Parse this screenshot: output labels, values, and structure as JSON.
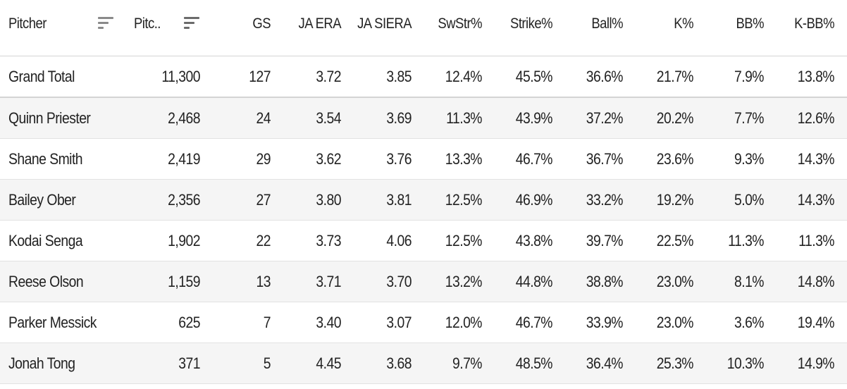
{
  "table": {
    "headers": {
      "pitcher": "Pitcher",
      "pitches": "Pitc..",
      "gs": "GS",
      "era": "JA ERA",
      "siera": "JA SIERA",
      "swstr": "SwStr%",
      "strike": "Strike%",
      "ball": "Ball%",
      "k": "K%",
      "bb": "BB%",
      "kbb": "K-BB%"
    },
    "icons": {
      "pitcher_sort": "sort-icon",
      "pitches_sort": "sort-descending-icon"
    },
    "rows": [
      {
        "pitcher": "Grand Total",
        "pitches": "11,300",
        "gs": "127",
        "era": "3.72",
        "siera": "3.85",
        "swstr": "12.4%",
        "strike": "45.5%",
        "ball": "36.6%",
        "k": "21.7%",
        "bb": "7.9%",
        "kbb": "13.8%"
      },
      {
        "pitcher": "Quinn Priester",
        "pitches": "2,468",
        "gs": "24",
        "era": "3.54",
        "siera": "3.69",
        "swstr": "11.3%",
        "strike": "43.9%",
        "ball": "37.2%",
        "k": "20.2%",
        "bb": "7.7%",
        "kbb": "12.6%"
      },
      {
        "pitcher": "Shane Smith",
        "pitches": "2,419",
        "gs": "29",
        "era": "3.62",
        "siera": "3.76",
        "swstr": "13.3%",
        "strike": "46.7%",
        "ball": "36.7%",
        "k": "23.6%",
        "bb": "9.3%",
        "kbb": "14.3%"
      },
      {
        "pitcher": "Bailey Ober",
        "pitches": "2,356",
        "gs": "27",
        "era": "3.80",
        "siera": "3.81",
        "swstr": "12.5%",
        "strike": "46.9%",
        "ball": "33.2%",
        "k": "19.2%",
        "bb": "5.0%",
        "kbb": "14.3%"
      },
      {
        "pitcher": "Kodai Senga",
        "pitches": "1,902",
        "gs": "22",
        "era": "3.73",
        "siera": "4.06",
        "swstr": "12.5%",
        "strike": "43.8%",
        "ball": "39.7%",
        "k": "22.5%",
        "bb": "11.3%",
        "kbb": "11.3%"
      },
      {
        "pitcher": "Reese Olson",
        "pitches": "1,159",
        "gs": "13",
        "era": "3.71",
        "siera": "3.70",
        "swstr": "13.2%",
        "strike": "44.8%",
        "ball": "38.8%",
        "k": "23.0%",
        "bb": "8.1%",
        "kbb": "14.8%"
      },
      {
        "pitcher": "Parker Messick",
        "pitches": "625",
        "gs": "7",
        "era": "3.40",
        "siera": "3.07",
        "swstr": "12.0%",
        "strike": "46.7%",
        "ball": "33.9%",
        "k": "23.0%",
        "bb": "3.6%",
        "kbb": "19.4%"
      },
      {
        "pitcher": "Jonah Tong",
        "pitches": "371",
        "gs": "5",
        "era": "4.45",
        "siera": "3.68",
        "swstr": "9.7%",
        "strike": "48.5%",
        "ball": "36.4%",
        "k": "25.3%",
        "bb": "10.3%",
        "kbb": "14.9%"
      }
    ],
    "colors": {
      "alt_row_bg": "#f5f5f5",
      "text": "#222222",
      "sort_icon": "#8a8a8a"
    }
  }
}
